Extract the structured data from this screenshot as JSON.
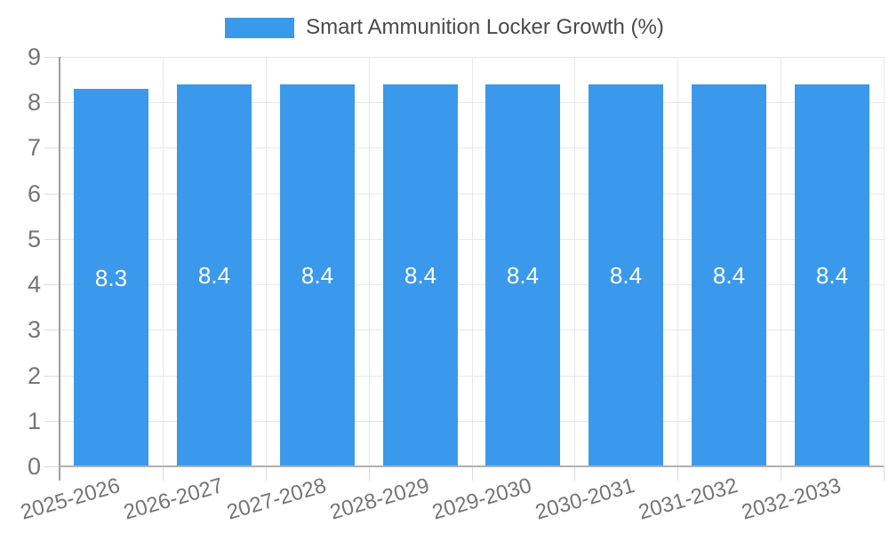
{
  "page": {
    "background": "#FFFFFF"
  },
  "legend": {
    "label": "Smart Ammunition Locker Growth (%)",
    "swatch_icon": "legend-swatch",
    "position": "top-center"
  },
  "chart_data": {
    "type": "bar",
    "title": "",
    "legend_label": "Smart Ammunition Locker Growth (%)",
    "categories": [
      "2025-2026",
      "2026-2027",
      "2027-2028",
      "2028-2029",
      "2029-2030",
      "2030-2031",
      "2031-2032",
      "2032-2033"
    ],
    "series": [
      {
        "name": "Smart Ammunition Locker Growth (%)",
        "values": [
          8.3,
          8.4,
          8.4,
          8.4,
          8.4,
          8.4,
          8.4,
          8.4
        ]
      }
    ],
    "bar_value_labels": [
      "8.3",
      "8.4",
      "8.4",
      "8.4",
      "8.4",
      "8.4",
      "8.4",
      "8.4"
    ],
    "xlabel": "",
    "ylabel": "",
    "ylim": [
      0,
      9
    ],
    "yticks": [
      0,
      1,
      2,
      3,
      4,
      5,
      6,
      7,
      8,
      9
    ],
    "grid": true,
    "legend_position": "top",
    "x_label_rotation_deg": -16,
    "colors": {
      "bar": "#3B99EC",
      "grid_line": "#E8E8E8",
      "tick_line": "#DCDCDC",
      "y_axis_line": "#9E9E9E",
      "x_axis_line": "#B0B0B0",
      "axis_label_text": "#757575",
      "legend_text": "#4A4A4A",
      "value_label_text": "#FFFFFF"
    }
  }
}
